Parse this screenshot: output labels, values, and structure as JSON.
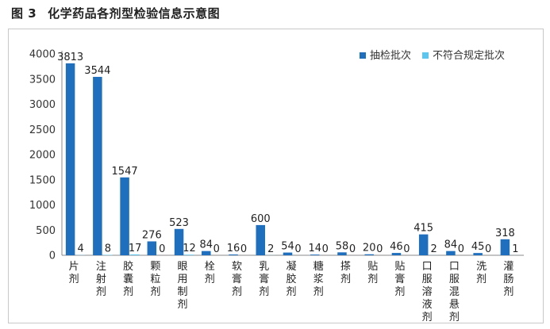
{
  "figure": {
    "number": "图 3",
    "title": "化学药品各剂型检验信息示意图"
  },
  "chart_data": {
    "type": "bar",
    "categories": [
      "片剂",
      "注射剂",
      "胶囊剂",
      "颗粒剂",
      "眼用制剂",
      "栓剂",
      "软膏剂",
      "乳膏剂",
      "凝胶剂",
      "糖浆剂",
      "搽剂",
      "贴剂",
      "贴膏剂",
      "口服溶液剂",
      "口服混悬剂",
      "洗剂",
      "灌肠剂"
    ],
    "series": [
      {
        "name": "抽检批次",
        "color": "#1f6fbf",
        "values": [
          3813,
          3544,
          1547,
          276,
          523,
          84,
          16,
          600,
          54,
          14,
          58,
          20,
          46,
          415,
          84,
          45,
          318
        ]
      },
      {
        "name": "不符合规定批次",
        "color": "#5cc6ee",
        "values": [
          4,
          8,
          17,
          0,
          12,
          0,
          0,
          2,
          0,
          0,
          0,
          0,
          0,
          2,
          0,
          0,
          1
        ]
      }
    ],
    "ylim": [
      0,
      4000
    ],
    "yticks": [
      0,
      500,
      1000,
      1500,
      2000,
      2500,
      3000,
      3500,
      4000
    ],
    "legend": "top-right",
    "grid": false
  }
}
